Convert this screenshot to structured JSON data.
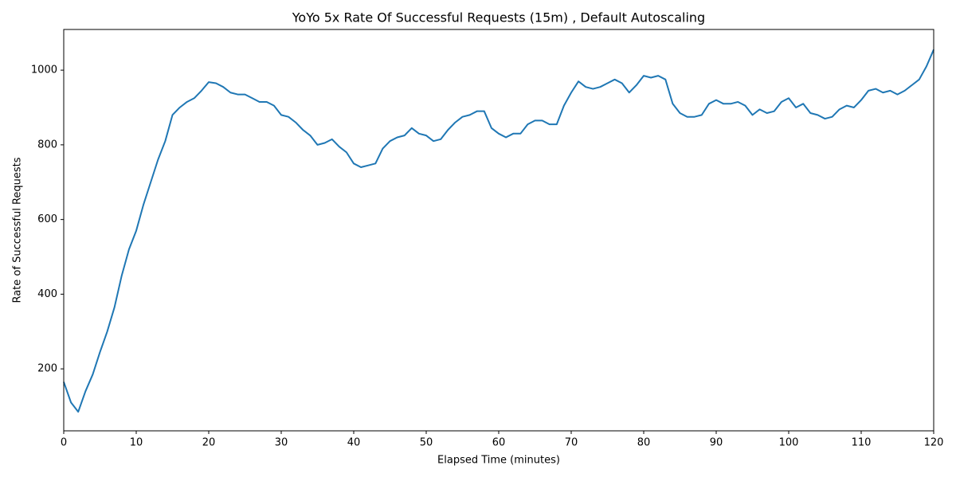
{
  "chart_data": {
    "type": "line",
    "title": "YoYo 5x Rate Of Successful Requests (15m) , Default Autoscaling",
    "x_label": "Elapsed Time (minutes)",
    "y_label": "Rate of Successful Requests",
    "x": [
      0,
      1,
      2,
      3,
      4,
      5,
      6,
      7,
      8,
      9,
      10,
      11,
      12,
      13,
      14,
      15,
      16,
      17,
      18,
      19,
      20,
      21,
      22,
      23,
      24,
      25,
      26,
      27,
      28,
      29,
      30,
      31,
      32,
      33,
      34,
      35,
      36,
      37,
      38,
      39,
      40,
      41,
      42,
      43,
      44,
      45,
      46,
      47,
      48,
      49,
      50,
      51,
      52,
      53,
      54,
      55,
      56,
      57,
      58,
      59,
      60,
      61,
      62,
      63,
      64,
      65,
      66,
      67,
      68,
      69,
      70,
      71,
      72,
      73,
      74,
      75,
      76,
      77,
      78,
      79,
      80,
      81,
      82,
      83,
      84,
      85,
      86,
      87,
      88,
      89,
      90,
      91,
      92,
      93,
      94,
      95,
      96,
      97,
      98,
      99,
      100,
      101,
      102,
      103,
      104,
      105,
      106,
      107,
      108,
      109,
      110,
      111,
      112,
      113,
      114,
      115,
      116,
      117,
      118,
      119,
      120
    ],
    "series": [
      {
        "name": "Rate of Successful Requests",
        "color": "#1f77b4",
        "values": [
          165,
          110,
          85,
          140,
          185,
          245,
          300,
          365,
          450,
          520,
          570,
          640,
          700,
          760,
          810,
          880,
          900,
          915,
          925,
          945,
          968,
          965,
          955,
          940,
          935,
          935,
          925,
          915,
          915,
          905,
          880,
          875,
          860,
          840,
          825,
          800,
          805,
          815,
          795,
          780,
          750,
          740,
          745,
          750,
          790,
          810,
          820,
          825,
          845,
          830,
          825,
          810,
          815,
          840,
          860,
          875,
          880,
          890,
          890,
          845,
          830,
          820,
          830,
          830,
          855,
          865,
          865,
          855,
          855,
          905,
          940,
          970,
          955,
          950,
          955,
          965,
          975,
          965,
          940,
          960,
          985,
          980,
          985,
          975,
          910,
          885,
          875,
          875,
          880,
          910,
          920,
          910,
          910,
          915,
          905,
          880,
          895,
          885,
          890,
          915,
          925,
          900,
          910,
          885,
          880,
          870,
          875,
          895,
          905,
          900,
          920,
          945,
          950,
          940,
          945,
          935,
          945,
          960,
          975,
          1010,
          1055
        ]
      }
    ],
    "xlim": [
      0,
      120
    ],
    "ylim": [
      34,
      1109
    ],
    "xticks": [
      0,
      10,
      20,
      30,
      40,
      50,
      60,
      70,
      80,
      90,
      100,
      110,
      120
    ],
    "yticks": [
      200,
      400,
      600,
      800,
      1000
    ]
  }
}
